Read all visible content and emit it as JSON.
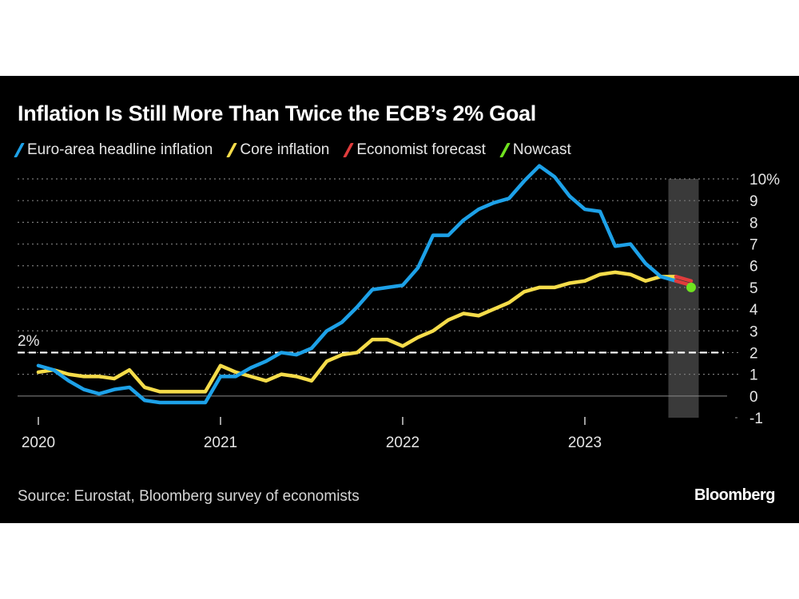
{
  "chart_data": {
    "type": "line",
    "title": "Inflation Is Still More Than Twice the ECB’s 2% Goal",
    "xlabel": "",
    "ylabel": "",
    "y_unit_label": "%",
    "ylim": [
      -1,
      10
    ],
    "yticks": [
      "-1",
      "0",
      "1",
      "2",
      "3",
      "4",
      "5",
      "6",
      "7",
      "8",
      "9",
      "10%"
    ],
    "ytick_values": [
      -1,
      0,
      1,
      2,
      3,
      4,
      5,
      6,
      7,
      8,
      9,
      10
    ],
    "xticks": [
      {
        "label": "2020",
        "month_index": 0
      },
      {
        "label": "2021",
        "month_index": 12
      },
      {
        "label": "2022",
        "month_index": 24
      },
      {
        "label": "2023",
        "month_index": 36
      }
    ],
    "x_start": "2020-01",
    "x_end_month_index": 44,
    "grid": true,
    "legend_position": "top-left",
    "reference_line": {
      "value": 2,
      "label": "2%"
    },
    "shaded_region": {
      "start_month_index": 41.5,
      "end_month_index": 43.5
    },
    "series": [
      {
        "name": "Euro-area headline inflation",
        "color": "#1da1e8",
        "start_month_index": 0,
        "values": [
          1.4,
          1.2,
          0.7,
          0.3,
          0.1,
          0.3,
          0.4,
          -0.2,
          -0.3,
          -0.3,
          -0.3,
          -0.3,
          0.9,
          0.9,
          1.3,
          1.6,
          2.0,
          1.9,
          2.2,
          3.0,
          3.4,
          4.1,
          4.9,
          5.0,
          5.1,
          5.9,
          7.4,
          7.4,
          8.1,
          8.6,
          8.9,
          9.1,
          9.9,
          10.6,
          10.1,
          9.2,
          8.6,
          8.5,
          6.9,
          7.0,
          6.1,
          5.5,
          5.3
        ]
      },
      {
        "name": "Core inflation",
        "color": "#f5dc4a",
        "start_month_index": 0,
        "values": [
          1.1,
          1.2,
          1.0,
          0.9,
          0.9,
          0.8,
          1.2,
          0.4,
          0.2,
          0.2,
          0.2,
          0.2,
          1.4,
          1.1,
          0.9,
          0.7,
          1.0,
          0.9,
          0.7,
          1.6,
          1.9,
          2.0,
          2.6,
          2.6,
          2.3,
          2.7,
          3.0,
          3.5,
          3.8,
          3.7,
          4.0,
          4.3,
          4.8,
          5.0,
          5.0,
          5.2,
          5.3,
          5.6,
          5.7,
          5.6,
          5.3,
          5.5,
          5.5
        ]
      },
      {
        "name": "Economist forecast",
        "color": "#e03c3c",
        "segments": [
          {
            "start_month_index": 42,
            "values": [
              5.3,
              5.1
            ]
          },
          {
            "start_month_index": 42,
            "values": [
              5.5,
              5.3
            ]
          }
        ]
      },
      {
        "name": "Nowcast",
        "color": "#6fe21f",
        "points": [
          {
            "month_index": 43,
            "value": 5.0
          }
        ]
      }
    ]
  },
  "header": {
    "title": "Inflation Is Still More Than Twice the ECB’s 2% Goal"
  },
  "legend": [
    {
      "label": "Euro-area headline inflation",
      "color": "#1da1e8"
    },
    {
      "label": "Core inflation",
      "color": "#f5dc4a"
    },
    {
      "label": "Economist forecast",
      "color": "#e03c3c"
    },
    {
      "label": "Nowcast",
      "color": "#6fe21f"
    }
  ],
  "footer": {
    "source": "Source: Eurostat, Bloomberg survey of economists",
    "brand": "Bloomberg"
  },
  "colors": {
    "background": "#000000",
    "grid": "#7a7a7a",
    "reference": "#ffffff",
    "shade": "#3a3a3a",
    "text": "#e6e6e6"
  }
}
